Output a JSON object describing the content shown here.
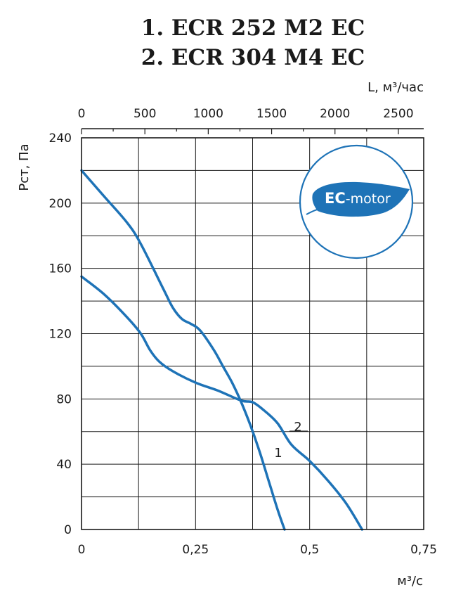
{
  "title": {
    "line1": "1. ECR 252 M2 EC",
    "line2": "2. ECR 304 M4 EC"
  },
  "badge": {
    "bold": "EC",
    "rest": "-motor",
    "icon": "leaf-icon"
  },
  "colors": {
    "curve": "#1e73b7",
    "badge": "#1e73b7",
    "badge_ring": "#1e73b7"
  },
  "chart_data": {
    "type": "line",
    "title": "1. ECR 252 M2 EC / 2. ECR 304 M4 EC",
    "xlabel": "м³/с",
    "x2label": "L, м³/час",
    "ylabel": "Рст, Па",
    "xlim": [
      0,
      0.75
    ],
    "x2lim": [
      0,
      2700
    ],
    "ylim": [
      0,
      240
    ],
    "grid": true,
    "x_ticks": [
      "0",
      "0,25",
      "0,5",
      "0,75"
    ],
    "x2_ticks": [
      "0",
      "500",
      "1000",
      "1500",
      "2000",
      "2500"
    ],
    "y_ticks": [
      "0",
      "40",
      "80",
      "120",
      "160",
      "200",
      "240"
    ],
    "series": [
      {
        "name": "1",
        "points": [
          [
            0,
            220
          ],
          [
            0.05,
            204
          ],
          [
            0.1,
            188
          ],
          [
            0.13,
            175
          ],
          [
            0.18,
            147
          ],
          [
            0.2,
            136
          ],
          [
            0.22,
            129
          ],
          [
            0.24,
            126
          ],
          [
            0.26,
            122
          ],
          [
            0.29,
            110
          ],
          [
            0.31,
            100
          ],
          [
            0.33,
            90
          ],
          [
            0.35,
            78
          ],
          [
            0.37,
            64
          ],
          [
            0.39,
            48
          ],
          [
            0.41,
            30
          ],
          [
            0.43,
            12
          ],
          [
            0.445,
            0
          ]
        ]
      },
      {
        "name": "2",
        "points": [
          [
            0,
            155
          ],
          [
            0.05,
            144
          ],
          [
            0.1,
            130
          ],
          [
            0.13,
            120
          ],
          [
            0.15,
            110
          ],
          [
            0.17,
            103
          ],
          [
            0.2,
            97
          ],
          [
            0.25,
            90
          ],
          [
            0.3,
            85
          ],
          [
            0.35,
            79
          ],
          [
            0.375,
            78
          ],
          [
            0.4,
            73
          ],
          [
            0.43,
            65
          ],
          [
            0.46,
            52
          ],
          [
            0.5,
            42
          ],
          [
            0.54,
            30
          ],
          [
            0.58,
            16
          ],
          [
            0.615,
            0
          ]
        ]
      }
    ]
  }
}
